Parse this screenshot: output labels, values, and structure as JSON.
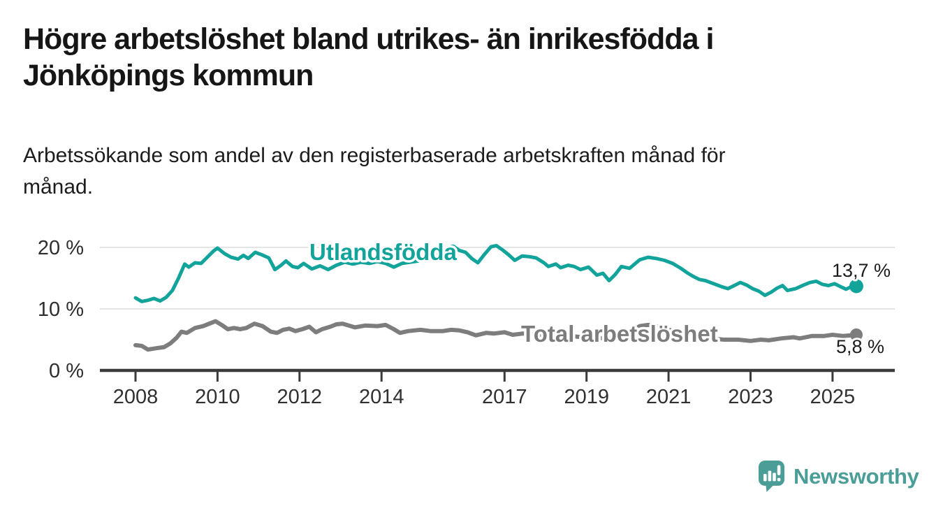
{
  "header": {
    "title_line1": "Högre arbetslöshet bland utrikes- än inrikesfödda i",
    "title_line2": "Jönköpings kommun",
    "subtitle_line1": "Arbetssökande som andel av den registerbaserade arbetskraften månad för",
    "subtitle_line2": "månad."
  },
  "footer": {
    "brand": "Newsworthy",
    "logo_icon": "speech-bubble-bar-chart-icon"
  },
  "colors": {
    "accent_teal": "#12a39b",
    "series_gray": "#7d7d7d",
    "axis": "#3b3b3b",
    "grid": "#dcdcdc",
    "value_label": "#1c1c1c",
    "logo_teal": "#4a9e97",
    "background": "#ffffff"
  },
  "chart_data": {
    "type": "line",
    "title": "Högre arbetslöshet bland utrikes- än inrikesfödda i Jönköpings kommun",
    "subtitle": "Arbetssökande som andel av den registerbaserade arbetskraften månad för månad.",
    "unit": "%",
    "grid": "horizontal",
    "x_axis": {
      "ticks": [
        {
          "year": 2008,
          "label": "2008"
        },
        {
          "year": 2010,
          "label": "2010"
        },
        {
          "year": 2012,
          "label": "2012"
        },
        {
          "year": 2014,
          "label": "2014"
        },
        {
          "year": 2017,
          "label": "2017"
        },
        {
          "year": 2019,
          "label": "2019"
        },
        {
          "year": 2021,
          "label": "2021"
        },
        {
          "year": 2023,
          "label": "2023"
        },
        {
          "year": 2025,
          "label": "2025"
        }
      ],
      "range": [
        2007.1,
        2026.5
      ]
    },
    "y_axis": {
      "ticks": [
        {
          "value": 0,
          "label": "0 %"
        },
        {
          "value": 10,
          "label": "10 %"
        },
        {
          "value": 20,
          "label": "20 %"
        }
      ],
      "range": [
        0,
        22
      ]
    },
    "series": [
      {
        "name": "Utlandsfödda",
        "color": "#12a39b",
        "end_value": 13.7,
        "end_label": "13,7 %",
        "points": [
          [
            2008.0,
            11.8
          ],
          [
            2008.15,
            11.2
          ],
          [
            2008.3,
            11.4
          ],
          [
            2008.45,
            11.7
          ],
          [
            2008.6,
            11.3
          ],
          [
            2008.75,
            11.9
          ],
          [
            2008.9,
            13.0
          ],
          [
            2009.05,
            15.0
          ],
          [
            2009.2,
            17.3
          ],
          [
            2009.3,
            16.8
          ],
          [
            2009.45,
            17.5
          ],
          [
            2009.6,
            17.4
          ],
          [
            2009.75,
            18.4
          ],
          [
            2009.9,
            19.4
          ],
          [
            2010.0,
            19.9
          ],
          [
            2010.17,
            19.0
          ],
          [
            2010.33,
            18.4
          ],
          [
            2010.5,
            18.1
          ],
          [
            2010.63,
            18.7
          ],
          [
            2010.75,
            18.2
          ],
          [
            2010.92,
            19.2
          ],
          [
            2011.08,
            18.8
          ],
          [
            2011.25,
            18.3
          ],
          [
            2011.4,
            16.4
          ],
          [
            2011.55,
            17.1
          ],
          [
            2011.67,
            17.8
          ],
          [
            2011.83,
            16.9
          ],
          [
            2011.96,
            16.7
          ],
          [
            2012.1,
            17.4
          ],
          [
            2012.3,
            16.5
          ],
          [
            2012.5,
            17.0
          ],
          [
            2012.7,
            16.4
          ],
          [
            2012.9,
            17.1
          ],
          [
            2013.1,
            17.6
          ],
          [
            2013.3,
            17.3
          ],
          [
            2013.5,
            17.6
          ],
          [
            2013.7,
            17.4
          ],
          [
            2013.9,
            17.7
          ],
          [
            2014.1,
            17.4
          ],
          [
            2014.3,
            16.8
          ],
          [
            2014.5,
            17.4
          ],
          [
            2014.7,
            17.6
          ],
          [
            2014.9,
            17.8
          ],
          [
            2015.1,
            18.2
          ],
          [
            2015.3,
            18.8
          ],
          [
            2015.5,
            19.6
          ],
          [
            2015.63,
            20.0
          ],
          [
            2015.75,
            20.2
          ],
          [
            2015.9,
            19.5
          ],
          [
            2016.05,
            19.2
          ],
          [
            2016.2,
            18.2
          ],
          [
            2016.35,
            17.5
          ],
          [
            2016.5,
            18.8
          ],
          [
            2016.67,
            20.1
          ],
          [
            2016.8,
            20.3
          ],
          [
            2016.95,
            19.6
          ],
          [
            2017.1,
            18.8
          ],
          [
            2017.25,
            17.9
          ],
          [
            2017.43,
            18.6
          ],
          [
            2017.6,
            18.5
          ],
          [
            2017.77,
            18.3
          ],
          [
            2017.96,
            17.5
          ],
          [
            2018.07,
            16.9
          ],
          [
            2018.25,
            17.3
          ],
          [
            2018.37,
            16.7
          ],
          [
            2018.55,
            17.1
          ],
          [
            2018.7,
            16.9
          ],
          [
            2018.85,
            16.4
          ],
          [
            2019.05,
            16.8
          ],
          [
            2019.25,
            15.5
          ],
          [
            2019.4,
            15.8
          ],
          [
            2019.55,
            14.6
          ],
          [
            2019.7,
            15.6
          ],
          [
            2019.85,
            16.9
          ],
          [
            2020.05,
            16.6
          ],
          [
            2020.3,
            18.0
          ],
          [
            2020.5,
            18.4
          ],
          [
            2020.7,
            18.2
          ],
          [
            2020.9,
            17.9
          ],
          [
            2021.1,
            17.4
          ],
          [
            2021.3,
            16.6
          ],
          [
            2021.45,
            15.9
          ],
          [
            2021.6,
            15.3
          ],
          [
            2021.75,
            14.8
          ],
          [
            2021.9,
            14.6
          ],
          [
            2022.1,
            14.1
          ],
          [
            2022.3,
            13.6
          ],
          [
            2022.45,
            13.3
          ],
          [
            2022.6,
            13.8
          ],
          [
            2022.75,
            14.3
          ],
          [
            2022.9,
            13.9
          ],
          [
            2023.05,
            13.3
          ],
          [
            2023.2,
            12.9
          ],
          [
            2023.35,
            12.2
          ],
          [
            2023.5,
            12.7
          ],
          [
            2023.65,
            13.4
          ],
          [
            2023.78,
            13.8
          ],
          [
            2023.9,
            13.0
          ],
          [
            2024.1,
            13.3
          ],
          [
            2024.3,
            13.9
          ],
          [
            2024.45,
            14.3
          ],
          [
            2024.6,
            14.5
          ],
          [
            2024.75,
            14.0
          ],
          [
            2024.9,
            13.8
          ],
          [
            2025.05,
            14.1
          ],
          [
            2025.2,
            13.6
          ],
          [
            2025.33,
            13.2
          ],
          [
            2025.45,
            13.6
          ],
          [
            2025.58,
            13.7
          ]
        ]
      },
      {
        "name": "Total arbetslöshet",
        "color": "#7d7d7d",
        "end_value": 5.8,
        "end_label": "5,8 %",
        "points": [
          [
            2008.0,
            4.1
          ],
          [
            2008.15,
            4.0
          ],
          [
            2008.3,
            3.4
          ],
          [
            2008.5,
            3.6
          ],
          [
            2008.7,
            3.8
          ],
          [
            2008.85,
            4.4
          ],
          [
            2009.0,
            5.3
          ],
          [
            2009.12,
            6.3
          ],
          [
            2009.25,
            6.1
          ],
          [
            2009.45,
            6.9
          ],
          [
            2009.65,
            7.2
          ],
          [
            2009.8,
            7.6
          ],
          [
            2009.95,
            8.0
          ],
          [
            2010.1,
            7.4
          ],
          [
            2010.25,
            6.7
          ],
          [
            2010.4,
            6.9
          ],
          [
            2010.55,
            6.7
          ],
          [
            2010.7,
            6.9
          ],
          [
            2010.9,
            7.6
          ],
          [
            2011.1,
            7.2
          ],
          [
            2011.3,
            6.3
          ],
          [
            2011.45,
            6.1
          ],
          [
            2011.6,
            6.6
          ],
          [
            2011.75,
            6.8
          ],
          [
            2011.9,
            6.4
          ],
          [
            2012.07,
            6.7
          ],
          [
            2012.24,
            7.1
          ],
          [
            2012.4,
            6.2
          ],
          [
            2012.55,
            6.7
          ],
          [
            2012.75,
            7.1
          ],
          [
            2012.9,
            7.5
          ],
          [
            2013.05,
            7.6
          ],
          [
            2013.25,
            7.2
          ],
          [
            2013.35,
            7.0
          ],
          [
            2013.6,
            7.3
          ],
          [
            2013.9,
            7.2
          ],
          [
            2014.1,
            7.4
          ],
          [
            2014.3,
            6.7
          ],
          [
            2014.45,
            6.1
          ],
          [
            2014.65,
            6.4
          ],
          [
            2014.95,
            6.6
          ],
          [
            2015.2,
            6.4
          ],
          [
            2015.5,
            6.4
          ],
          [
            2015.7,
            6.6
          ],
          [
            2015.9,
            6.5
          ],
          [
            2016.1,
            6.2
          ],
          [
            2016.3,
            5.7
          ],
          [
            2016.55,
            6.1
          ],
          [
            2016.75,
            6.0
          ],
          [
            2017.0,
            6.2
          ],
          [
            2017.2,
            5.8
          ],
          [
            2017.45,
            6.0
          ],
          [
            2017.7,
            5.9
          ],
          [
            2018.0,
            5.7
          ],
          [
            2018.3,
            5.5
          ],
          [
            2018.6,
            5.6
          ],
          [
            2018.9,
            5.4
          ],
          [
            2019.2,
            5.3
          ],
          [
            2019.5,
            5.2
          ],
          [
            2019.8,
            5.4
          ],
          [
            2020.1,
            6.4
          ],
          [
            2020.3,
            7.2
          ],
          [
            2020.5,
            7.4
          ],
          [
            2020.7,
            7.2
          ],
          [
            2020.9,
            6.8
          ],
          [
            2021.2,
            6.3
          ],
          [
            2021.5,
            5.8
          ],
          [
            2021.8,
            5.4
          ],
          [
            2022.05,
            5.2
          ],
          [
            2022.35,
            5.0
          ],
          [
            2022.7,
            5.0
          ],
          [
            2023.0,
            4.8
          ],
          [
            2023.25,
            5.0
          ],
          [
            2023.45,
            4.9
          ],
          [
            2023.75,
            5.2
          ],
          [
            2024.05,
            5.4
          ],
          [
            2024.2,
            5.2
          ],
          [
            2024.5,
            5.6
          ],
          [
            2024.8,
            5.6
          ],
          [
            2025.0,
            5.8
          ],
          [
            2025.25,
            5.6
          ],
          [
            2025.45,
            5.7
          ],
          [
            2025.58,
            5.8
          ]
        ]
      }
    ]
  }
}
